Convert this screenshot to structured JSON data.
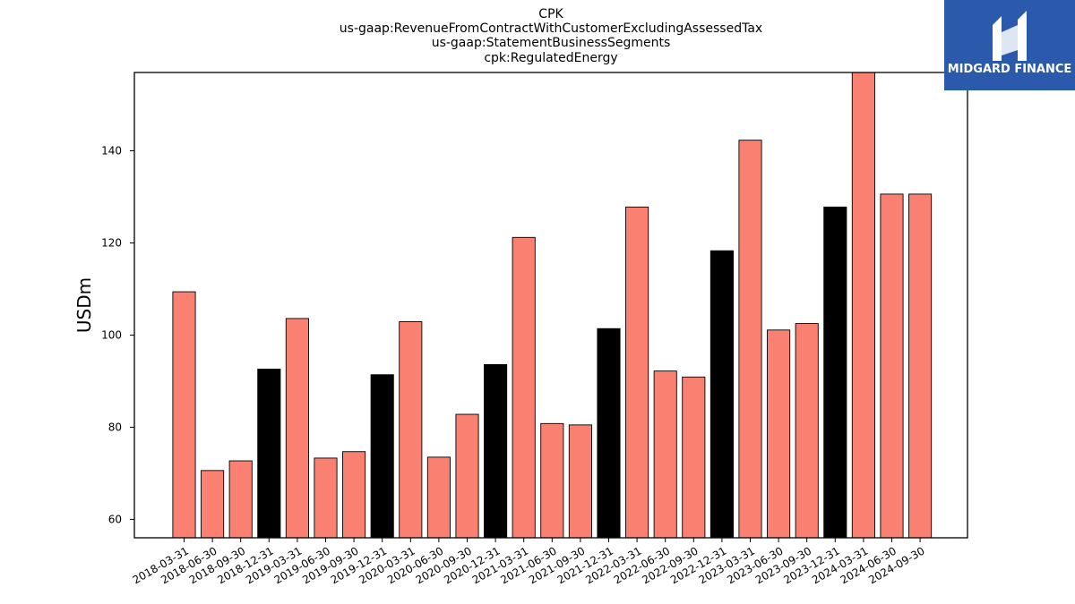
{
  "chart_data": {
    "type": "bar",
    "title_lines": [
      "CPK",
      "us-gaap:RevenueFromContractWithCustomerExcludingAssessedTax",
      "us-gaap:StatementBusinessSegments",
      "cpk:RegulatedEnergy"
    ],
    "xlabel": "",
    "ylabel": "USDm",
    "ylim": [
      56,
      157
    ],
    "yticks": [
      60,
      80,
      100,
      120,
      140
    ],
    "grid": false,
    "categories": [
      "2018-03-31",
      "2018-06-30",
      "2018-09-30",
      "2018-12-31",
      "2019-03-31",
      "2019-06-30",
      "2019-09-30",
      "2019-12-31",
      "2020-03-31",
      "2020-06-30",
      "2020-09-30",
      "2020-12-31",
      "2021-03-31",
      "2021-06-30",
      "2021-09-30",
      "2021-12-31",
      "2022-03-31",
      "2022-06-30",
      "2022-09-30",
      "2022-12-31",
      "2023-03-31",
      "2023-06-30",
      "2023-09-30",
      "2023-12-31",
      "2024-03-31",
      "2024-06-30",
      "2024-09-30"
    ],
    "values": [
      109.4,
      70.6,
      72.7,
      92.6,
      103.6,
      73.3,
      74.7,
      91.4,
      102.9,
      73.5,
      82.8,
      93.6,
      121.2,
      80.8,
      80.5,
      101.4,
      127.8,
      92.2,
      90.9,
      118.3,
      142.3,
      101.1,
      102.5,
      127.8,
      157.5,
      130.6,
      130.6
    ],
    "bar_colors": {
      "default": "#fa8072",
      "year_end": "#000000"
    }
  },
  "logo": {
    "text": "MIDGARD FINANCE",
    "background": "#2b5aad",
    "icon": "midgard-logo-icon"
  }
}
